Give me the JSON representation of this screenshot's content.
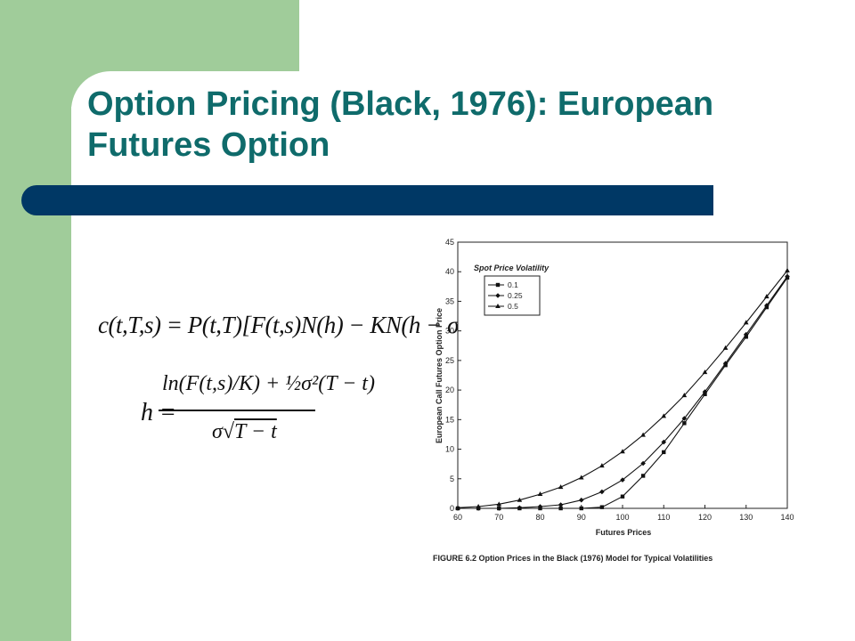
{
  "slide": {
    "title": "Option Pricing (Black, 1976): European Futures Option",
    "formula": {
      "line1": "c(t,T,s) = P(t,T)[F(t,s)N(h) − KN(h − σ√T − t)]",
      "h_label": "h =",
      "numerator": "ln(F(t,s)/K) + ½σ²(T − t)",
      "denominator_sigma": "σ",
      "denominator_sqrt": "T − t"
    },
    "caption": "FIGURE 6.2   Option Prices in the Black (1976) Model for Typical Volatilities"
  },
  "colors": {
    "accent_green": "#a0cc9a",
    "title_teal": "#0f6b6b",
    "bar_navy": "#003865"
  },
  "chart_data": {
    "type": "line",
    "title": "",
    "xlabel": "Futures Prices",
    "ylabel": "European Call Futures Option Price",
    "xlim": [
      60,
      140
    ],
    "ylim": [
      0,
      45
    ],
    "xticks": [
      60,
      70,
      80,
      90,
      100,
      110,
      120,
      130,
      140
    ],
    "yticks": [
      0,
      5,
      10,
      15,
      20,
      25,
      30,
      35,
      40,
      45
    ],
    "legend_title": "Spot Price Volatility",
    "legend_position": "top-left",
    "grid": false,
    "series": [
      {
        "name": "0.1",
        "marker": "square",
        "x": [
          60,
          65,
          70,
          75,
          80,
          85,
          90,
          95,
          100,
          105,
          110,
          115,
          120,
          125,
          130,
          135,
          140
        ],
        "y": [
          0,
          0,
          0,
          0,
          0,
          0,
          0,
          0.2,
          2,
          5.5,
          9.5,
          14.4,
          19.3,
          24.2,
          29,
          34,
          39
        ]
      },
      {
        "name": "0.25",
        "marker": "diamond",
        "x": [
          60,
          65,
          70,
          75,
          80,
          85,
          90,
          95,
          100,
          105,
          110,
          115,
          120,
          125,
          130,
          135,
          140
        ],
        "y": [
          0,
          0,
          0,
          0.1,
          0.3,
          0.6,
          1.4,
          2.8,
          4.8,
          7.6,
          11.2,
          15.2,
          19.7,
          24.5,
          29.4,
          34.3,
          39.2
        ]
      },
      {
        "name": "0.5",
        "marker": "triangle",
        "x": [
          60,
          65,
          70,
          75,
          80,
          85,
          90,
          95,
          100,
          105,
          110,
          115,
          120,
          125,
          130,
          135,
          140
        ],
        "y": [
          0.1,
          0.3,
          0.7,
          1.4,
          2.4,
          3.6,
          5.2,
          7.2,
          9.6,
          12.4,
          15.6,
          19.1,
          23,
          27.1,
          31.4,
          35.8,
          40.2
        ]
      }
    ]
  }
}
